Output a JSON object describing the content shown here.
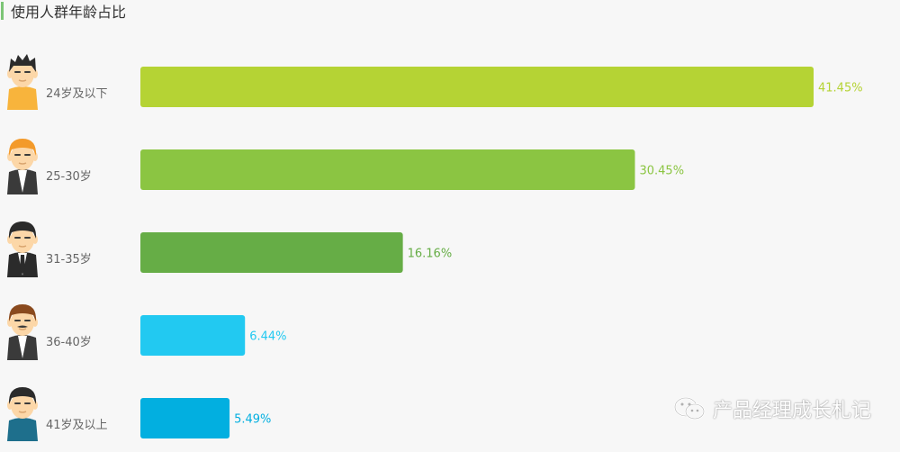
{
  "title": "使用人群年龄占比",
  "watermark": "产品经理成长札记",
  "chart_data": {
    "type": "bar",
    "orientation": "horizontal",
    "categories": [
      "24岁及以下",
      "25-30岁",
      "31-35岁",
      "36-40岁",
      "41岁及以上"
    ],
    "values": [
      41.45,
      30.45,
      16.16,
      6.44,
      5.49
    ],
    "value_labels": [
      "41.45%",
      "30.45%",
      "16.16%",
      "6.44%",
      "5.49%"
    ],
    "colors": [
      "#b5d334",
      "#8bc542",
      "#66ad46",
      "#22c9f1",
      "#02afe0"
    ],
    "icons": [
      "young-man-icon",
      "young-man-orange-hair-icon",
      "man-in-suit-icon",
      "mustache-man-icon",
      "older-man-icon"
    ],
    "xlim": [
      0,
      41.45
    ],
    "grid": false
  }
}
